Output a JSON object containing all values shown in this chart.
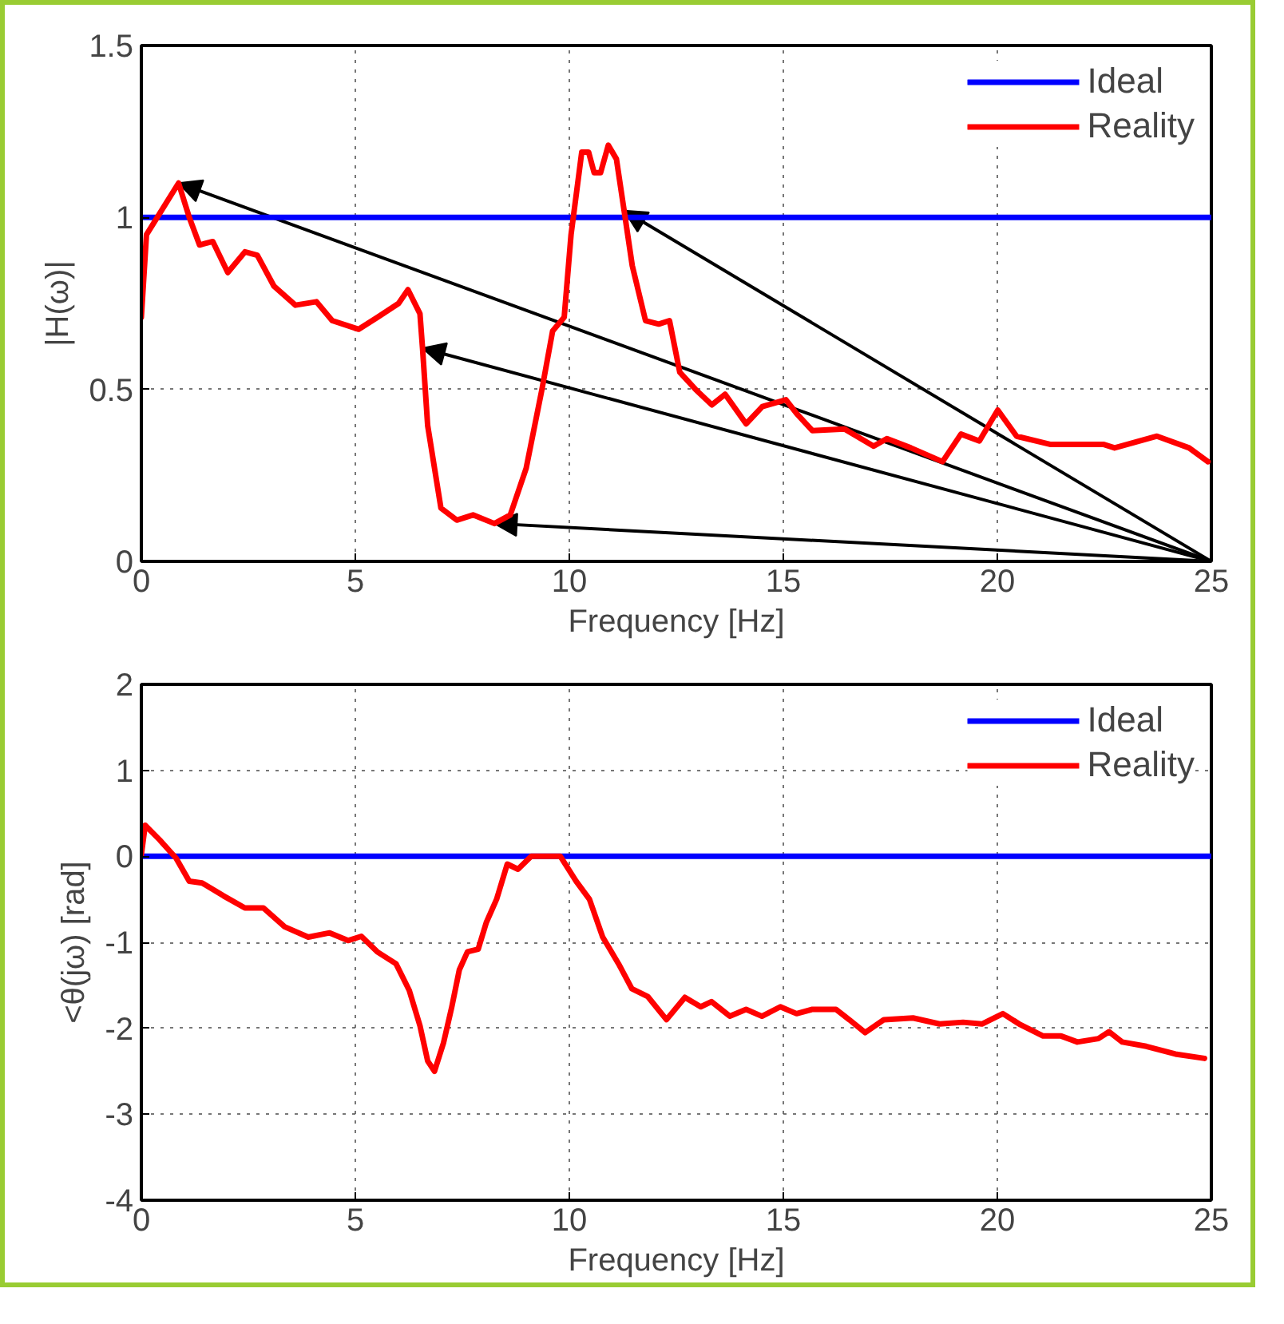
{
  "chart_data": [
    {
      "type": "line",
      "xlabel": "Frequency [Hz]",
      "ylabel": "|H(ω)|",
      "xlim": [
        0,
        25
      ],
      "xticks": [
        0,
        5,
        10,
        15,
        20,
        25
      ],
      "ylim": [
        0,
        1.5
      ],
      "yticks": [
        0,
        0.5,
        1,
        1.5
      ],
      "grid": true,
      "legend": "top right",
      "line_style": "solid",
      "series": [
        {
          "name": "Ideal",
          "color": "#0000ff",
          "x": [
            0,
            25
          ],
          "values": [
            1,
            1
          ]
        },
        {
          "name": "Reality",
          "color": "#ff0000",
          "x": [
            0,
            0.12,
            0.37,
            0.87,
            1.12,
            1.36,
            1.67,
            2.02,
            2.42,
            2.71,
            3.1,
            3.6,
            4.09,
            4.46,
            5.08,
            5.52,
            6.01,
            6.23,
            6.51,
            6.57,
            6.69,
            7.0,
            7.37,
            7.75,
            8.25,
            8.62,
            8.99,
            9.36,
            9.61,
            9.88,
            10.04,
            10.29,
            10.45,
            10.58,
            10.73,
            10.91,
            11.1,
            11.28,
            11.47,
            11.78,
            12.09,
            12.34,
            12.58,
            12.95,
            13.33,
            13.64,
            14.13,
            14.51,
            15.06,
            15.31,
            15.68,
            16.43,
            17.11,
            17.42,
            17.98,
            18.72,
            19.15,
            19.58,
            20.01,
            20.45,
            21.25,
            22.49,
            22.74,
            23.73,
            24.48,
            24.92
          ],
          "values": [
            0.71,
            0.95,
            1.0,
            1.1,
            1.0,
            0.92,
            0.93,
            0.84,
            0.9,
            0.89,
            0.8,
            0.745,
            0.755,
            0.7,
            0.675,
            0.71,
            0.75,
            0.79,
            0.72,
            0.62,
            0.395,
            0.155,
            0.12,
            0.135,
            0.11,
            0.135,
            0.27,
            0.5,
            0.67,
            0.71,
            0.95,
            1.19,
            1.19,
            1.13,
            1.13,
            1.21,
            1.17,
            1.02,
            0.86,
            0.7,
            0.69,
            0.7,
            0.55,
            0.5,
            0.455,
            0.486,
            0.4,
            0.45,
            0.47,
            0.43,
            0.38,
            0.385,
            0.335,
            0.357,
            0.33,
            0.29,
            0.37,
            0.35,
            0.44,
            0.364,
            0.34,
            0.34,
            0.33,
            0.364,
            0.33,
            0.29
          ]
        }
      ]
    },
    {
      "type": "line",
      "xlabel": "Frequency [Hz]",
      "ylabel": "<θ(jω) [rad]",
      "xlim": [
        0,
        25
      ],
      "xticks": [
        0,
        5,
        10,
        15,
        20,
        25
      ],
      "ylim": [
        -4,
        2
      ],
      "yticks": [
        -4,
        -3,
        -2,
        -1,
        0,
        1,
        2
      ],
      "grid": true,
      "legend": "top right",
      "line_style": "solid",
      "series": [
        {
          "name": "Ideal",
          "color": "#0000ff",
          "x": [
            0,
            25
          ],
          "values": [
            0,
            0
          ]
        },
        {
          "name": "Reality",
          "color": "#ff0000",
          "x": [
            0,
            0.09,
            0.43,
            0.81,
            1.12,
            1.42,
            1.92,
            2.42,
            2.85,
            3.35,
            3.9,
            4.4,
            4.83,
            5.14,
            5.51,
            5.95,
            6.26,
            6.51,
            6.69,
            6.85,
            7.06,
            7.25,
            7.43,
            7.62,
            7.87,
            8.06,
            8.3,
            8.55,
            8.8,
            9.11,
            9.79,
            10.16,
            10.47,
            10.78,
            11.15,
            11.46,
            11.83,
            12.27,
            12.7,
            13.07,
            13.32,
            13.75,
            14.13,
            14.5,
            14.93,
            15.31,
            15.68,
            16.23,
            16.54,
            16.91,
            17.35,
            18.03,
            18.65,
            19.2,
            19.64,
            20.13,
            20.51,
            21.07,
            21.49,
            21.87,
            22.36,
            22.61,
            22.92,
            23.48,
            24.16,
            24.84
          ],
          "values": [
            0.02,
            0.36,
            0.19,
            -0.02,
            -0.29,
            -0.31,
            -0.46,
            -0.6,
            -0.6,
            -0.82,
            -0.94,
            -0.89,
            -0.98,
            -0.93,
            -1.11,
            -1.25,
            -1.56,
            -1.97,
            -2.38,
            -2.5,
            -2.17,
            -1.76,
            -1.32,
            -1.11,
            -1.08,
            -0.77,
            -0.5,
            -0.09,
            -0.15,
            0,
            0,
            -0.29,
            -0.5,
            -0.94,
            -1.25,
            -1.54,
            -1.63,
            -1.9,
            -1.64,
            -1.75,
            -1.69,
            -1.86,
            -1.78,
            -1.86,
            -1.75,
            -1.83,
            -1.78,
            -1.78,
            -1.9,
            -2.05,
            -1.9,
            -1.88,
            -1.95,
            -1.93,
            -1.95,
            -1.83,
            -1.95,
            -2.09,
            -2.09,
            -2.16,
            -2.12,
            -2.04,
            -2.16,
            -2.21,
            -2.3,
            -2.35
          ]
        }
      ]
    }
  ]
}
